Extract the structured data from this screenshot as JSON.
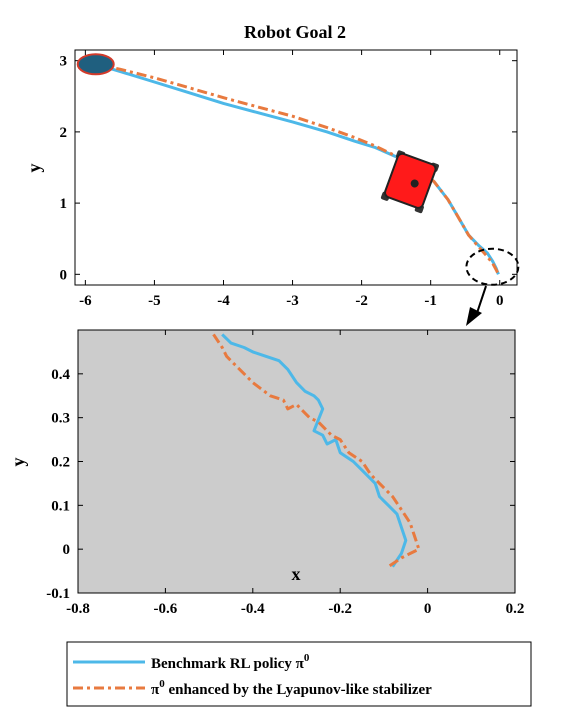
{
  "chart_data": [
    {
      "type": "line",
      "title": "Robot Goal 2",
      "xlabel": "",
      "ylabel": "y",
      "xlim": [
        -6.15,
        0.25
      ],
      "ylim": [
        -0.15,
        3.15
      ],
      "xticks": [
        "-6",
        "-5",
        "-4",
        "-3",
        "-2",
        "-1",
        "0"
      ],
      "yticks": [
        "0",
        "1",
        "2",
        "3"
      ],
      "series": [
        {
          "name": "Benchmark RL policy π⁰",
          "color": "#4db8e8",
          "style": "solid",
          "x": [
            -5.85,
            -5.5,
            -5.0,
            -4.5,
            -4.0,
            -3.5,
            -3.0,
            -2.5,
            -2.1,
            -1.8,
            -1.5,
            -1.2,
            -0.95,
            -0.75,
            -0.6,
            -0.45,
            -0.3,
            -0.18,
            -0.1,
            -0.05,
            -0.02
          ],
          "y": [
            2.95,
            2.85,
            2.7,
            2.55,
            2.4,
            2.27,
            2.14,
            2.0,
            1.87,
            1.78,
            1.65,
            1.5,
            1.3,
            1.05,
            0.8,
            0.55,
            0.4,
            0.3,
            0.18,
            0.08,
            0.0
          ]
        },
        {
          "name": "π⁰ enhanced by the Lyapunov-like stabilizer",
          "color": "#e87a3f",
          "style": "dashdot",
          "x": [
            -5.85,
            -5.5,
            -5.0,
            -4.5,
            -4.0,
            -3.5,
            -3.0,
            -2.5,
            -2.1,
            -1.8,
            -1.5,
            -1.2,
            -0.95,
            -0.75,
            -0.6,
            -0.45,
            -0.3,
            -0.18,
            -0.1,
            -0.05,
            -0.02
          ],
          "y": [
            2.95,
            2.88,
            2.76,
            2.62,
            2.48,
            2.35,
            2.22,
            2.06,
            1.92,
            1.8,
            1.66,
            1.5,
            1.3,
            1.05,
            0.8,
            0.55,
            0.38,
            0.25,
            0.15,
            0.06,
            0.0
          ]
        }
      ],
      "annotations": {
        "start_marker": {
          "x": -5.85,
          "y": 2.95,
          "color": "#1f5f7f",
          "edge": "#d23a2a"
        },
        "robot": {
          "x": -1.3,
          "y": 1.3,
          "color": "#ff1a1a"
        },
        "zoom_circle": {
          "x": -0.15,
          "y": 0.05
        }
      }
    },
    {
      "type": "line",
      "title": "",
      "xlabel": "x",
      "ylabel": "y",
      "xlim": [
        -0.8,
        0.2
      ],
      "ylim": [
        -0.1,
        0.5
      ],
      "xticks": [
        "-0.8",
        "-0.6",
        "-0.4",
        "-0.2",
        "0",
        "0.2"
      ],
      "yticks": [
        "-0.1",
        "0",
        "0.1",
        "0.2",
        "0.3",
        "0.4"
      ],
      "background": "#cccccc",
      "series": [
        {
          "name": "Benchmark RL policy π⁰",
          "color": "#4db8e8",
          "style": "solid",
          "x": [
            -0.47,
            -0.45,
            -0.42,
            -0.4,
            -0.37,
            -0.34,
            -0.32,
            -0.3,
            -0.28,
            -0.26,
            -0.25,
            -0.24,
            -0.26,
            -0.24,
            -0.23,
            -0.21,
            -0.2,
            -0.17,
            -0.14,
            -0.12,
            -0.11,
            -0.09,
            -0.07,
            -0.06,
            -0.05,
            -0.06,
            -0.08
          ],
          "y": [
            0.49,
            0.47,
            0.46,
            0.45,
            0.44,
            0.43,
            0.41,
            0.38,
            0.36,
            0.35,
            0.34,
            0.32,
            0.27,
            0.26,
            0.24,
            0.25,
            0.22,
            0.2,
            0.17,
            0.15,
            0.12,
            0.1,
            0.08,
            0.05,
            0.02,
            -0.01,
            -0.04
          ]
        },
        {
          "name": "π⁰ enhanced by the Lyapunov-like stabilizer",
          "color": "#e87a3f",
          "style": "dashdot",
          "x": [
            -0.49,
            -0.47,
            -0.46,
            -0.44,
            -0.42,
            -0.4,
            -0.36,
            -0.33,
            -0.32,
            -0.3,
            -0.28,
            -0.27,
            -0.25,
            -0.22,
            -0.2,
            -0.18,
            -0.15,
            -0.13,
            -0.11,
            -0.08,
            -0.06,
            -0.04,
            -0.03,
            -0.02,
            -0.04,
            -0.06,
            -0.09
          ],
          "y": [
            0.49,
            0.46,
            0.44,
            0.42,
            0.4,
            0.38,
            0.35,
            0.34,
            0.32,
            0.33,
            0.31,
            0.3,
            0.29,
            0.26,
            0.25,
            0.22,
            0.2,
            0.17,
            0.15,
            0.12,
            0.09,
            0.06,
            0.03,
            0.0,
            -0.01,
            -0.02,
            -0.04
          ]
        }
      ]
    }
  ],
  "legend": {
    "entries": [
      {
        "label": "Benchmark RL policy π",
        "sup": "0",
        "color": "#4db8e8",
        "style": "solid"
      },
      {
        "label": " enhanced by the Lyapunov-like stabilizer",
        "pre": "π",
        "sup": "0",
        "color": "#e87a3f",
        "style": "dashdot"
      }
    ],
    "placement": "bottom"
  }
}
